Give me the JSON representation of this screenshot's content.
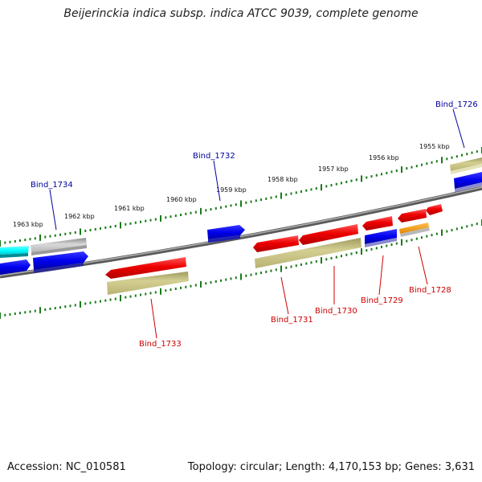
{
  "title": "Beijerinckia indica subsp. indica ATCC 9039, complete genome",
  "footer": {
    "accession": "Accession: NC_010581",
    "summary": "Topology: circular; Length: 4,170,153 bp; Genes: 3,631"
  },
  "colors": {
    "forward_label": "#00009a",
    "reverse_label": "#cc0000",
    "ticks": "#1a7a1a",
    "backbone": "#777777"
  },
  "kbp_labels": [
    "1963 kbp",
    "1962 kbp",
    "1961 kbp",
    "1960 kbp",
    "1959 kbp",
    "1958 kbp",
    "1957 kbp",
    "1956 kbp",
    "1955 kbp"
  ],
  "gene_labels": {
    "bind_1726": "Bind_1726",
    "bind_1728": "Bind_1728",
    "bind_1729": "Bind_1729",
    "bind_1730": "Bind_1730",
    "bind_1731": "Bind_1731",
    "bind_1732": "Bind_1732",
    "bind_1733": "Bind_1733",
    "bind_1734": "Bind_1734"
  }
}
